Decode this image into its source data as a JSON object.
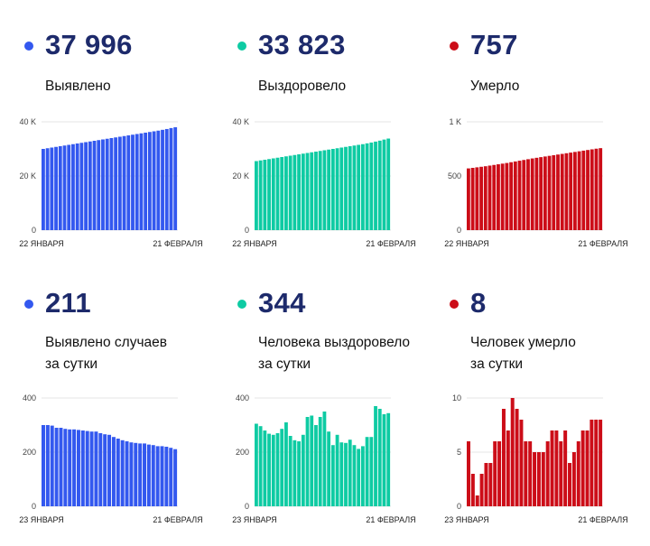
{
  "colors": {
    "blue": "#3358ef",
    "teal": "#0ecba3",
    "red": "#cc0d18",
    "headline": "#1d2a6b"
  },
  "panels": [
    {
      "value": "37 996",
      "label1": "Выявлено",
      "label2": "",
      "color": "#3358ef",
      "x_start": "22 ЯНВАРЯ",
      "x_end": "21 ФЕВРАЛЯ",
      "yticks": [
        "40 K",
        "20 K",
        "0"
      ]
    },
    {
      "value": "33 823",
      "label1": "Выздоровело",
      "label2": "",
      "color": "#0ecba3",
      "x_start": "22 ЯНВАРЯ",
      "x_end": "21 ФЕВРАЛЯ",
      "yticks": [
        "40 K",
        "20 K",
        "0"
      ]
    },
    {
      "value": "757",
      "label1": "Умерло",
      "label2": "",
      "color": "#cc0d18",
      "x_start": "22 ЯНВАРЯ",
      "x_end": "21 ФЕВРАЛЯ",
      "yticks": [
        "1 K",
        "500",
        "0"
      ]
    },
    {
      "value": "211",
      "label1": "Выявлено случаев",
      "label2": "за сутки",
      "color": "#3358ef",
      "x_start": "23 ЯНВАРЯ",
      "x_end": "21 ФЕВРАЛЯ",
      "yticks": [
        "400",
        "200",
        "0"
      ]
    },
    {
      "value": "344",
      "label1": "Человека выздоровело",
      "label2": "за сутки",
      "color": "#0ecba3",
      "x_start": "23 ЯНВАРЯ",
      "x_end": "21 ФЕВРАЛЯ",
      "yticks": [
        "400",
        "200",
        "0"
      ]
    },
    {
      "value": "8",
      "label1": "Человек умерло",
      "label2": "за сутки",
      "color": "#cc0d18",
      "x_start": "23 ЯНВАРЯ",
      "x_end": "21 ФЕВРАЛЯ",
      "yticks": [
        "10",
        "5",
        "0"
      ]
    }
  ],
  "chart_data": [
    {
      "type": "bar",
      "title": "Выявлено",
      "x_start": "22 ЯНВАРЯ",
      "x_end": "21 ФЕВРАЛЯ",
      "ylim": [
        0,
        40000
      ],
      "yticks": [
        0,
        20000,
        40000
      ],
      "grid": true,
      "values": [
        30000,
        30250,
        30500,
        30750,
        31000,
        31250,
        31500,
        31750,
        32000,
        32250,
        32500,
        32750,
        33000,
        33250,
        33500,
        33750,
        34000,
        34250,
        34500,
        34750,
        35000,
        35250,
        35500,
        35750,
        36000,
        36250,
        36500,
        36750,
        37050,
        37350,
        37700,
        37996
      ]
    },
    {
      "type": "bar",
      "title": "Выздоровело",
      "x_start": "22 ЯНВАРЯ",
      "x_end": "21 ФЕВРАЛЯ",
      "ylim": [
        0,
        40000
      ],
      "yticks": [
        0,
        20000,
        40000
      ],
      "grid": true,
      "values": [
        25500,
        25750,
        26000,
        26250,
        26500,
        26750,
        27000,
        27250,
        27500,
        27750,
        28000,
        28250,
        28500,
        28750,
        29000,
        29250,
        29500,
        29750,
        30000,
        30250,
        30500,
        30750,
        31000,
        31250,
        31500,
        31750,
        32050,
        32350,
        32700,
        33050,
        33450,
        33823
      ]
    },
    {
      "type": "bar",
      "title": "Умерло",
      "x_start": "22 ЯНВАРЯ",
      "x_end": "21 ФЕВРАЛЯ",
      "ylim": [
        0,
        1000
      ],
      "yticks": [
        0,
        500,
        1000
      ],
      "grid": true,
      "values": [
        570,
        575,
        580,
        585,
        590,
        596,
        602,
        608,
        614,
        620,
        627,
        634,
        641,
        648,
        655,
        662,
        668,
        674,
        680,
        686,
        692,
        698,
        704,
        710,
        716,
        722,
        728,
        734,
        740,
        746,
        752,
        757
      ]
    },
    {
      "type": "bar",
      "title": "Выявлено случаев за сутки",
      "x_start": "23 ЯНВАРЯ",
      "x_end": "21 ФЕВРАЛЯ",
      "ylim": [
        0,
        400
      ],
      "yticks": [
        0,
        200,
        400
      ],
      "grid": true,
      "values": [
        300,
        300,
        298,
        290,
        290,
        286,
        284,
        284,
        282,
        280,
        278,
        276,
        276,
        270,
        266,
        264,
        256,
        250,
        244,
        240,
        236,
        234,
        232,
        232,
        228,
        226,
        222,
        222,
        220,
        216,
        211
      ]
    },
    {
      "type": "bar",
      "title": "Человека выздоровело за сутки",
      "x_start": "23 ЯНВАРЯ",
      "x_end": "21 ФЕВРАЛЯ",
      "ylim": [
        0,
        400
      ],
      "yticks": [
        0,
        200,
        400
      ],
      "grid": true,
      "values": [
        305,
        296,
        280,
        268,
        264,
        270,
        286,
        310,
        260,
        244,
        240,
        264,
        330,
        335,
        300,
        330,
        350,
        276,
        226,
        264,
        236,
        234,
        246,
        226,
        212,
        222,
        256,
        256,
        370,
        360,
        340,
        344
      ]
    },
    {
      "type": "bar",
      "title": "Человек умерло за сутки",
      "x_start": "23 ЯНВАРЯ",
      "x_end": "21 ФЕВРАЛЯ",
      "ylim": [
        0,
        10
      ],
      "yticks": [
        0,
        5,
        10
      ],
      "grid": true,
      "values": [
        6,
        3,
        1,
        3,
        4,
        4,
        6,
        6,
        9,
        7,
        10,
        9,
        8,
        6,
        6,
        5,
        5,
        5,
        6,
        7,
        7,
        6,
        7,
        4,
        5,
        6,
        7,
        7,
        8,
        8,
        8
      ]
    }
  ]
}
